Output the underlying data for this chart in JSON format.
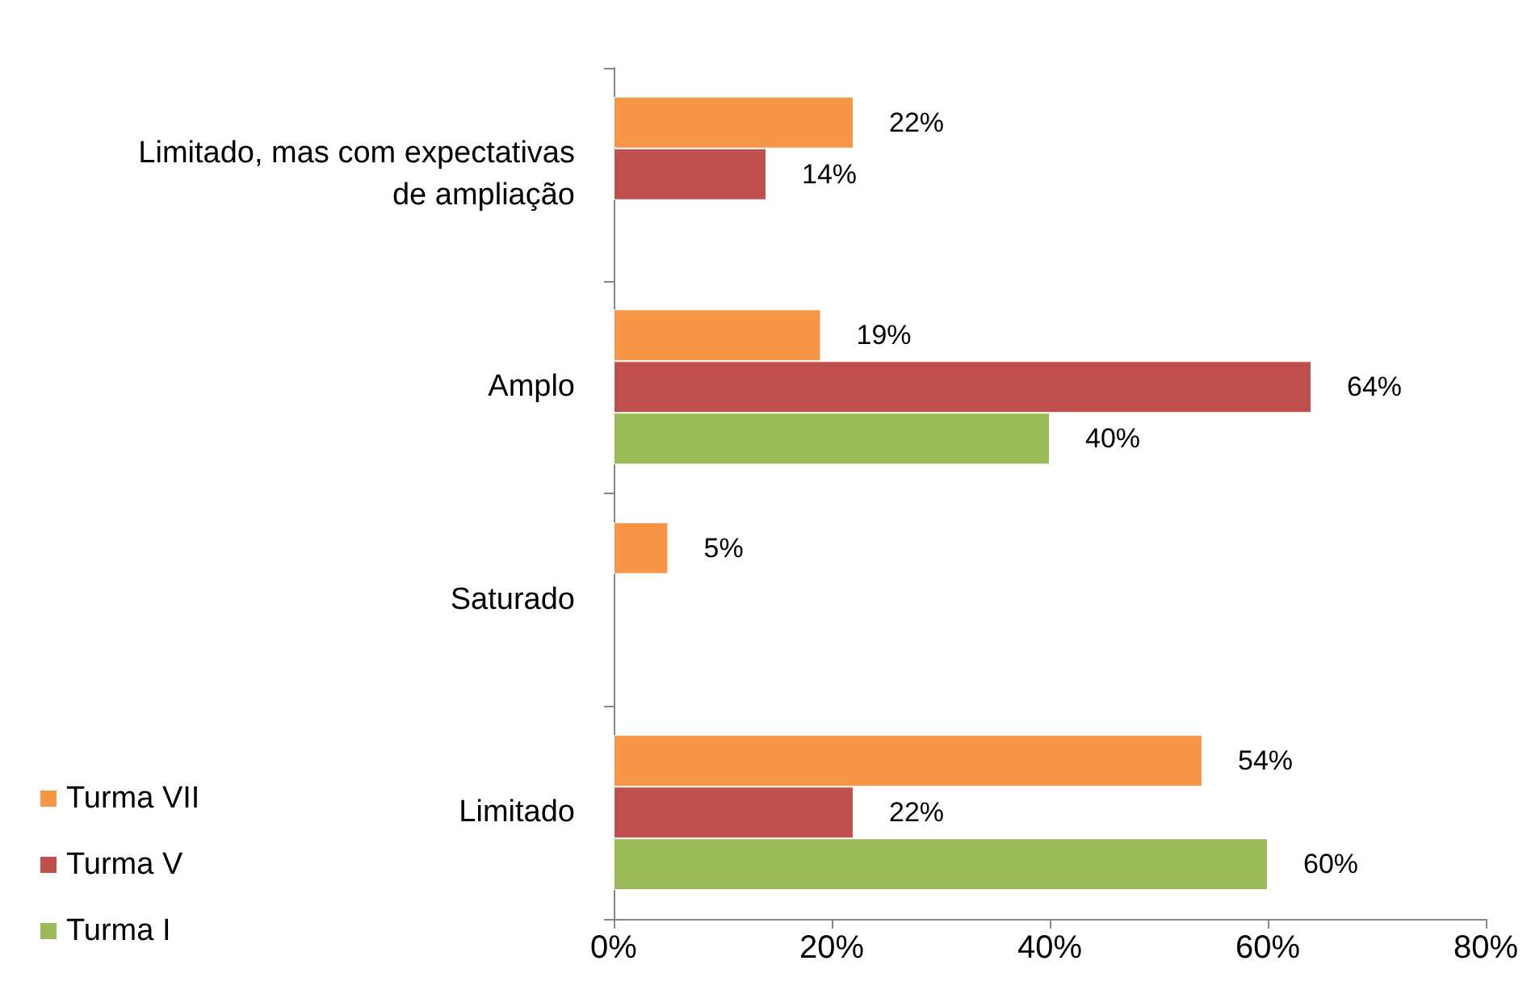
{
  "chart_data": {
    "type": "bar",
    "orientation": "horizontal",
    "categories": [
      "Limitado, mas com expectativas de ampliação",
      "Amplo",
      "Saturado",
      "Limitado"
    ],
    "series": [
      {
        "name": "Turma VII",
        "color": "#f79646",
        "values": [
          22,
          19,
          5,
          54
        ],
        "value_labels": [
          "22%",
          "19%",
          "5%",
          "54%"
        ]
      },
      {
        "name": "Turma V",
        "color": "#c0504d",
        "values": [
          14,
          64,
          null,
          22
        ],
        "value_labels": [
          "14%",
          "64%",
          null,
          "22%"
        ]
      },
      {
        "name": "Turma I",
        "color": "#9bbb59",
        "values": [
          null,
          40,
          null,
          60
        ],
        "value_labels": [
          null,
          "40%",
          null,
          "60%"
        ]
      }
    ],
    "xlim": [
      0,
      80
    ],
    "xticks": [
      {
        "value": 0,
        "label": "0%"
      },
      {
        "value": 20,
        "label": "20%"
      },
      {
        "value": 40,
        "label": "40%"
      },
      {
        "value": 60,
        "label": "60%"
      },
      {
        "value": 80,
        "label": "80%"
      }
    ],
    "grid": false,
    "legend": "bottom left"
  }
}
